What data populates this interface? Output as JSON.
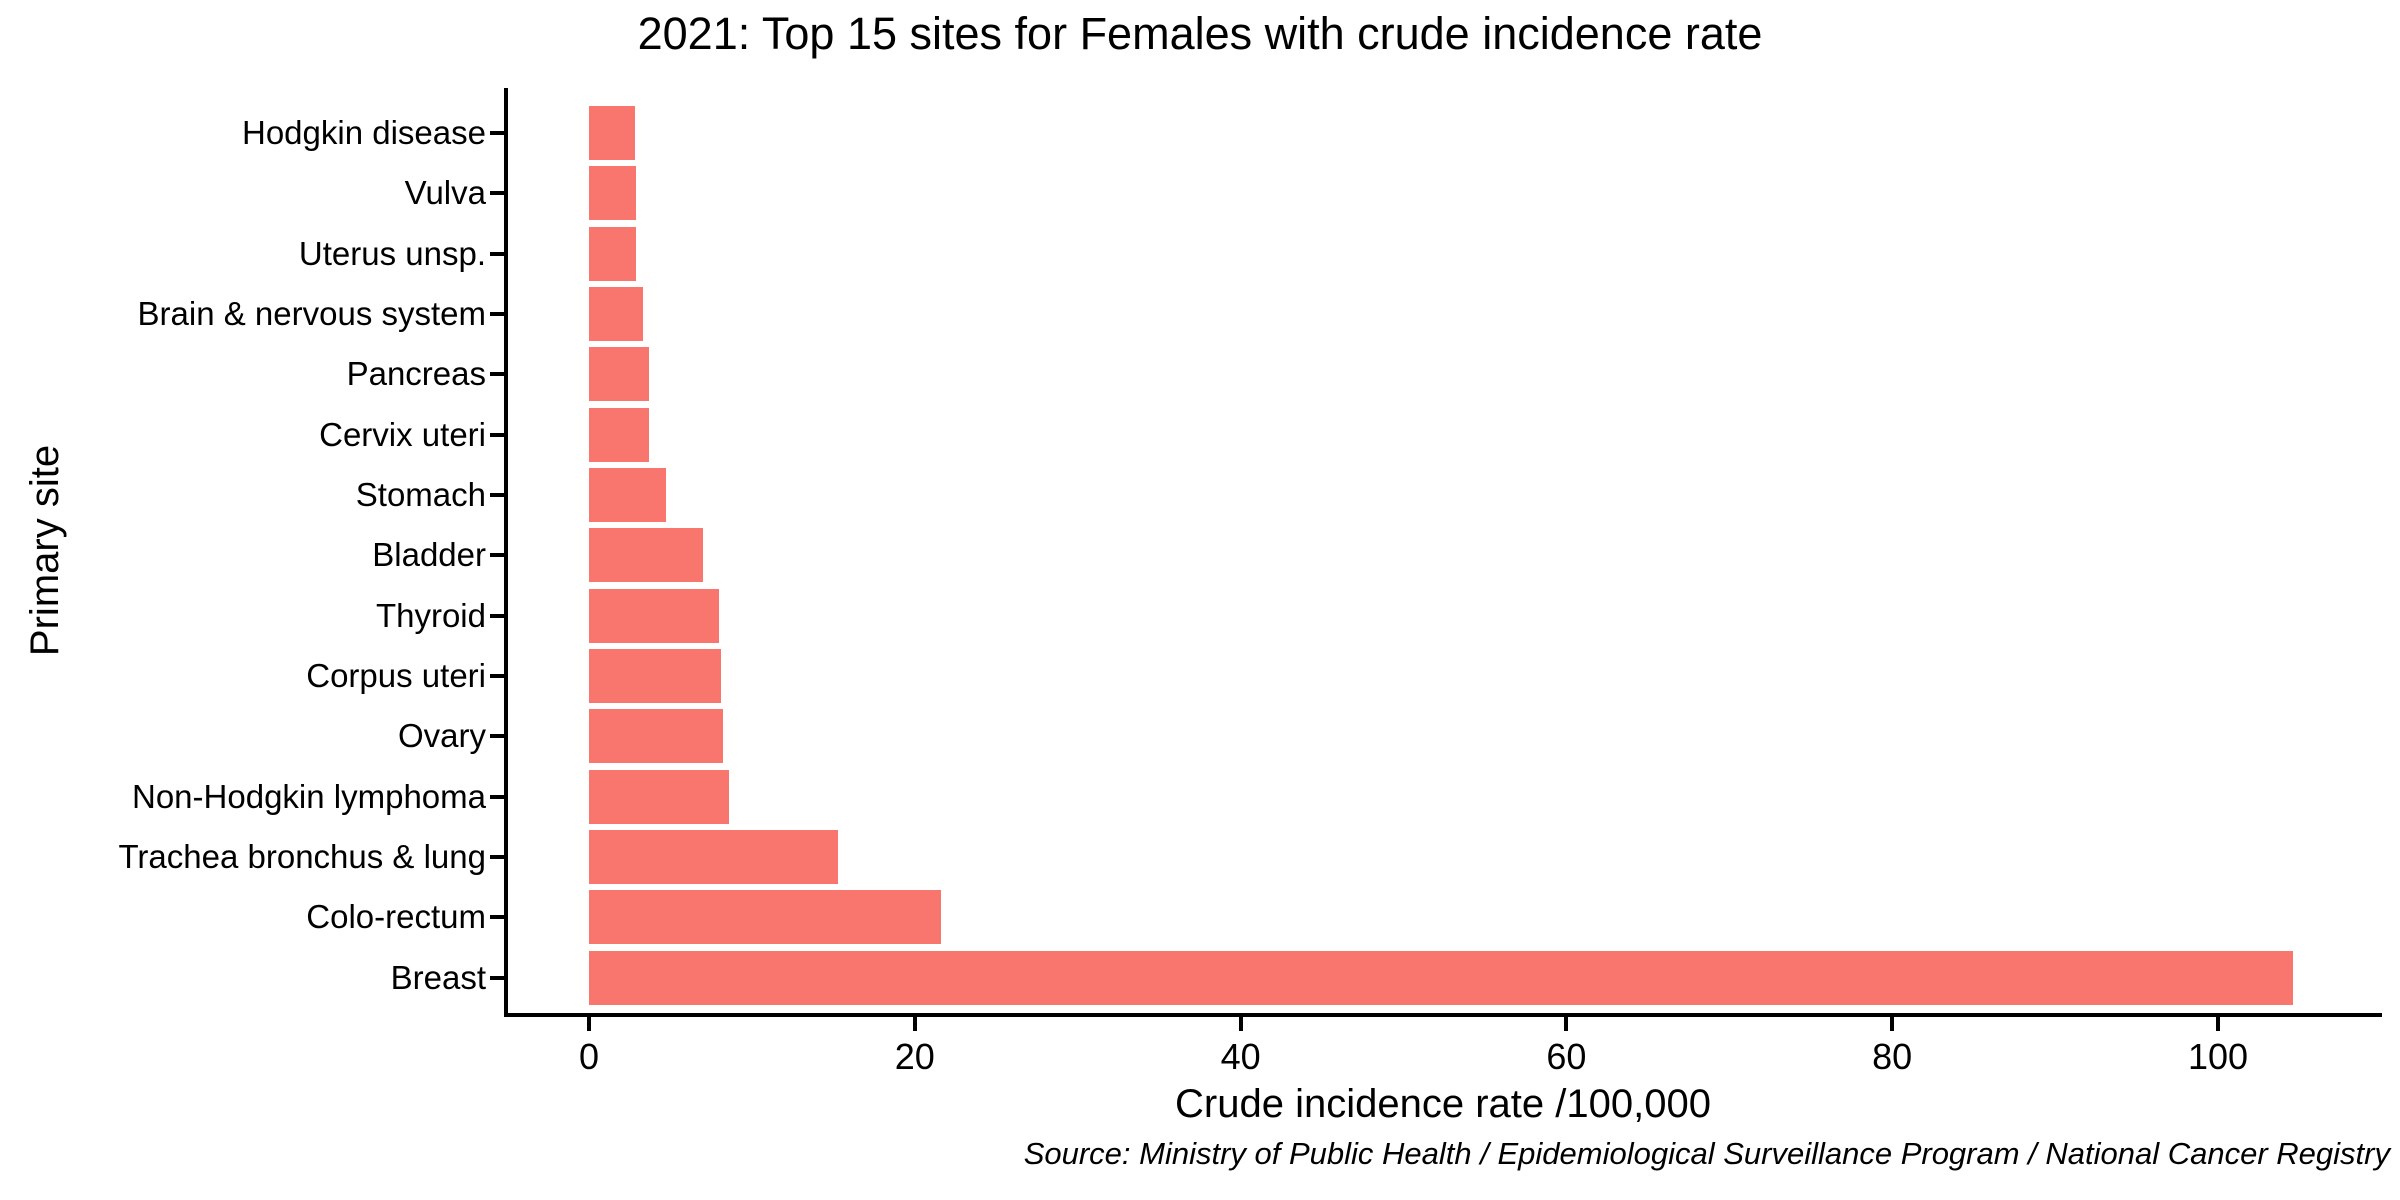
{
  "chart_data": {
    "type": "bar",
    "orientation": "horizontal",
    "title": "2021: Top 15 sites for Females with crude incidence rate",
    "xlabel": "Crude incidence rate /100,000",
    "ylabel": "Primary site",
    "caption": "Source: Ministry of Public Health / Epidemiological Surveillance Program / National Cancer Registry",
    "categories": [
      "Hodgkin disease",
      "Vulva",
      "Uterus unsp.",
      "Brain & nervous system",
      "Pancreas",
      "Cervix uteri",
      "Stomach",
      "Bladder",
      "Thyroid",
      "Corpus uteri",
      "Ovary",
      "Non-Hodgkin lymphoma",
      "Trachea bronchus & lung",
      "Colo-rectum",
      "Breast"
    ],
    "values": [
      2.8,
      2.9,
      2.9,
      3.3,
      3.7,
      3.7,
      4.7,
      7.0,
      8.0,
      8.1,
      8.2,
      8.6,
      15.3,
      21.6,
      104.6
    ],
    "xticks": [
      0,
      20,
      40,
      60,
      80,
      100
    ],
    "xlim": [
      0,
      110
    ],
    "grid": false,
    "legend": false,
    "bar_color": "#F8766D",
    "axis_color": "#000000",
    "text_color": "#000000",
    "background_color": "#FFFFFF"
  }
}
